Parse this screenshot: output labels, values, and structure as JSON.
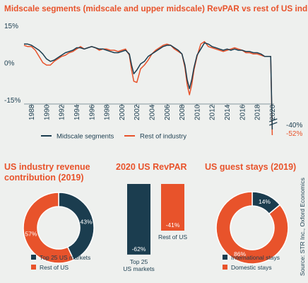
{
  "colors": {
    "navy": "#1b3d4f",
    "orange": "#e8532b",
    "background": "#eef0ee",
    "white": "#ffffff"
  },
  "source_note": "Source: STR Inc., Oxford Economics",
  "chart_data": [
    {
      "type": "line",
      "title": "Midscale segments (midscale and upper midscale) RevPAR vs rest of US industry",
      "xlabel": "",
      "ylabel": "",
      "y_tick_labels": [
        "15%",
        "0%",
        "-15%"
      ],
      "ylim": [
        -15,
        15
      ],
      "xlim": [
        1987,
        2021
      ],
      "x_tick_labels": [
        "1988",
        "1990",
        "1992",
        "1994",
        "1996",
        "1998",
        "2000",
        "2002",
        "2004",
        "2006",
        "2008",
        "2010",
        "2012",
        "2014",
        "2016",
        "2018",
        "2020"
      ],
      "x_ticks": [
        1988,
        1990,
        1992,
        1994,
        1996,
        1998,
        2000,
        2002,
        2004,
        2006,
        2008,
        2010,
        2012,
        2014,
        2016,
        2018,
        2020
      ],
      "axis_break": true,
      "legend_position": "bottom",
      "series": [
        {
          "name": "Midscale segments",
          "color": "#1b3d4f",
          "end_label": "-40%",
          "end_value": -40,
          "x": [
            1987.0,
            1987.5,
            1988.0,
            1988.5,
            1989.0,
            1989.5,
            1990.0,
            1990.5,
            1991.0,
            1991.5,
            1992.0,
            1992.5,
            1993.0,
            1993.5,
            1994.0,
            1994.5,
            1995.0,
            1995.5,
            1996.0,
            1996.5,
            1997.0,
            1997.5,
            1998.0,
            1998.5,
            1999.0,
            1999.5,
            2000.0,
            2000.5,
            2001.0,
            2001.3,
            2001.6,
            2002.0,
            2002.5,
            2003.0,
            2003.5,
            2004.0,
            2004.5,
            2005.0,
            2005.5,
            2006.0,
            2006.5,
            2007.0,
            2007.5,
            2008.0,
            2008.4,
            2008.7,
            2009.0,
            2009.3,
            2009.6,
            2010.0,
            2010.5,
            2011.0,
            2011.5,
            2012.0,
            2012.5,
            2013.0,
            2013.5,
            2014.0,
            2014.5,
            2015.0,
            2015.5,
            2016.0,
            2016.5,
            2017.0,
            2017.5,
            2018.0,
            2018.5,
            2019.0,
            2019.5,
            2019.8,
            2020.0
          ],
          "y": [
            7.5,
            7.5,
            7.0,
            6.0,
            5.0,
            3.5,
            1.5,
            0.5,
            1.0,
            2.0,
            3.0,
            4.0,
            4.5,
            5.0,
            6.0,
            6.0,
            5.5,
            6.0,
            6.5,
            6.0,
            5.5,
            5.5,
            5.0,
            4.5,
            4.0,
            4.0,
            4.5,
            5.0,
            3.5,
            -1.0,
            -4.5,
            -3.0,
            -0.5,
            0.5,
            2.5,
            3.5,
            4.5,
            5.5,
            6.5,
            7.0,
            7.0,
            6.0,
            5.0,
            3.5,
            -1.0,
            -7.0,
            -10.5,
            -7.0,
            -2.0,
            3.0,
            5.5,
            8.0,
            7.5,
            6.5,
            6.0,
            5.5,
            5.0,
            5.5,
            5.0,
            5.5,
            5.0,
            5.0,
            4.5,
            4.5,
            4.0,
            4.0,
            3.5,
            2.5,
            2.5,
            2.5,
            -40
          ]
        },
        {
          "name": "Rest of industry",
          "color": "#e8532b",
          "end_label": "-52%",
          "end_value": -52,
          "x": [
            1987.0,
            1987.5,
            1988.0,
            1988.5,
            1989.0,
            1989.5,
            1990.0,
            1990.5,
            1991.0,
            1991.5,
            1992.0,
            1992.5,
            1993.0,
            1993.5,
            1994.0,
            1994.5,
            1995.0,
            1995.5,
            1996.0,
            1996.5,
            1997.0,
            1997.5,
            1998.0,
            1998.5,
            1999.0,
            1999.5,
            2000.0,
            2000.5,
            2001.0,
            2001.3,
            2001.6,
            2002.0,
            2002.5,
            2003.0,
            2003.5,
            2004.0,
            2004.5,
            2005.0,
            2005.5,
            2006.0,
            2006.5,
            2007.0,
            2007.5,
            2008.0,
            2008.4,
            2008.7,
            2009.0,
            2009.3,
            2009.6,
            2010.0,
            2010.5,
            2011.0,
            2011.5,
            2012.0,
            2012.5,
            2013.0,
            2013.5,
            2014.0,
            2014.5,
            2015.0,
            2015.5,
            2016.0,
            2016.5,
            2017.0,
            2017.5,
            2018.0,
            2018.5,
            2019.0,
            2019.5,
            2019.8,
            2020.0
          ],
          "y": [
            7.0,
            6.5,
            6.5,
            5.0,
            2.5,
            0.0,
            -1.0,
            -1.0,
            0.5,
            1.5,
            2.5,
            3.0,
            4.0,
            4.5,
            5.5,
            6.5,
            5.5,
            6.0,
            6.5,
            6.0,
            5.0,
            5.5,
            5.5,
            5.0,
            5.0,
            4.5,
            5.0,
            5.5,
            3.0,
            -3.0,
            -7.5,
            -8.0,
            -2.5,
            -1.0,
            1.0,
            3.5,
            5.0,
            6.0,
            7.0,
            7.5,
            7.0,
            5.5,
            4.5,
            3.5,
            -2.0,
            -9.0,
            -13.0,
            -9.0,
            -3.0,
            2.5,
            7.5,
            8.5,
            6.5,
            6.0,
            5.5,
            5.0,
            4.5,
            5.0,
            5.5,
            6.0,
            5.5,
            5.0,
            4.0,
            4.0,
            3.5,
            3.5,
            3.0,
            2.5,
            2.5,
            2.5,
            -52
          ]
        }
      ]
    },
    {
      "type": "pie",
      "title": "US industry revenue contribution (2019)",
      "labels": [
        "Top 25 US markets",
        "Rest of US"
      ],
      "values": [
        43,
        57
      ],
      "value_labels": [
        "43%",
        "57%"
      ],
      "colors": [
        "#1b3d4f",
        "#e8532b"
      ]
    },
    {
      "type": "bar",
      "title": "2020 US RevPAR",
      "categories": [
        "Top 25 US markets",
        "Rest of US"
      ],
      "category_lines": [
        [
          "Top 25",
          "US markets"
        ],
        [
          "Rest of US"
        ]
      ],
      "values": [
        -62,
        -41
      ],
      "value_labels": [
        "-62%",
        "-41%"
      ],
      "colors": [
        "#1b3d4f",
        "#e8532b"
      ]
    },
    {
      "type": "pie",
      "title": "US guest stays (2019)",
      "labels": [
        "International stays",
        "Domestic stays"
      ],
      "values": [
        14,
        86
      ],
      "value_labels": [
        "14%",
        "86%"
      ],
      "colors": [
        "#1b3d4f",
        "#e8532b"
      ]
    }
  ]
}
